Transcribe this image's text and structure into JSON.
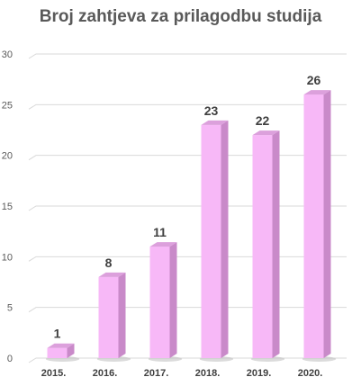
{
  "chart_data": {
    "type": "bar",
    "title": "Broj zahtjeva za prilagodbu studija",
    "categories": [
      "2015.",
      "2016.",
      "2017.",
      "2018.",
      "2019.",
      "2020."
    ],
    "values": [
      1,
      8,
      11,
      23,
      22,
      26
    ],
    "y_ticks": [
      "0",
      "5",
      "10",
      "15",
      "20",
      "25",
      "30"
    ],
    "ylim": [
      0,
      30
    ],
    "grid": true,
    "bar_color": "#f7b8f7",
    "bar_side_color": "#c98ac9",
    "bar_top_color": "#dca0dc"
  }
}
